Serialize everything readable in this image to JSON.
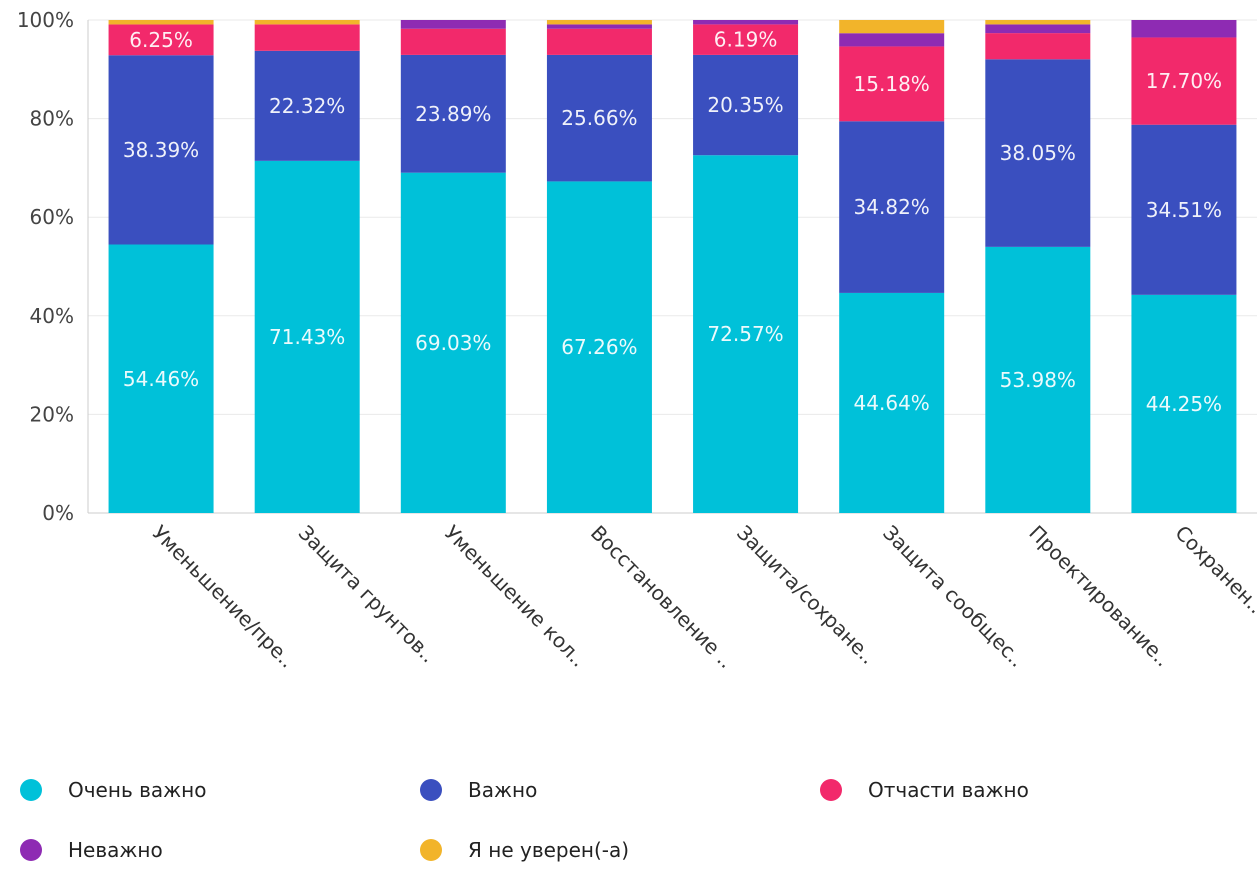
{
  "chart_data": {
    "type": "bar",
    "stacked": true,
    "percent": true,
    "title": "",
    "xlabel": "",
    "ylabel": "",
    "ylim": [
      0,
      100
    ],
    "yticks": [
      "0%",
      "20%",
      "40%",
      "60%",
      "80%",
      "100%"
    ],
    "categories": [
      "Уменьшение/пре..",
      "Защита грунтов..",
      "Уменьшение кол..",
      "Восстановление ..",
      "Защита/сохране..",
      "Защита сообщес..",
      "Проектирование..",
      "Сохранен.."
    ],
    "series": [
      {
        "name": "Очень важно",
        "color": "#00c1d9",
        "values": [
          54.46,
          71.43,
          69.03,
          67.26,
          72.57,
          44.64,
          53.98,
          44.25
        ],
        "labels": [
          "54.46%",
          "71.43%",
          "69.03%",
          "67.26%",
          "72.57%",
          "44.64%",
          "53.98%",
          "44.25%"
        ]
      },
      {
        "name": "Важно",
        "color": "#3a4fbf",
        "values": [
          38.39,
          22.32,
          23.89,
          25.66,
          20.35,
          34.82,
          38.05,
          34.51
        ],
        "labels": [
          "38.39%",
          "22.32%",
          "23.89%",
          "25.66%",
          "20.35%",
          "34.82%",
          "38.05%",
          "34.51%"
        ]
      },
      {
        "name": "Отчасти важно",
        "color": "#f2296b",
        "values": [
          6.25,
          5.36,
          5.31,
          5.31,
          6.19,
          15.18,
          5.31,
          17.7
        ],
        "labels": [
          "6.25%",
          "",
          "",
          "",
          "6.19%",
          "15.18%",
          "",
          "17.70%"
        ]
      },
      {
        "name": "Неважно",
        "color": "#8e2bb3",
        "values": [
          0.0,
          0.0,
          1.77,
          0.88,
          0.89,
          2.68,
          1.77,
          3.54
        ],
        "labels": [
          "",
          "",
          "",
          "",
          "",
          "",
          "",
          ""
        ]
      },
      {
        "name": "Я не уверен(-а)",
        "color": "#f2b42a",
        "values": [
          0.9,
          0.89,
          0.0,
          0.89,
          0.0,
          2.68,
          0.89,
          0.0
        ],
        "labels": [
          "",
          "",
          "",
          "",
          "",
          "",
          "",
          ""
        ]
      }
    ],
    "grid": true,
    "legend": "bottom"
  }
}
